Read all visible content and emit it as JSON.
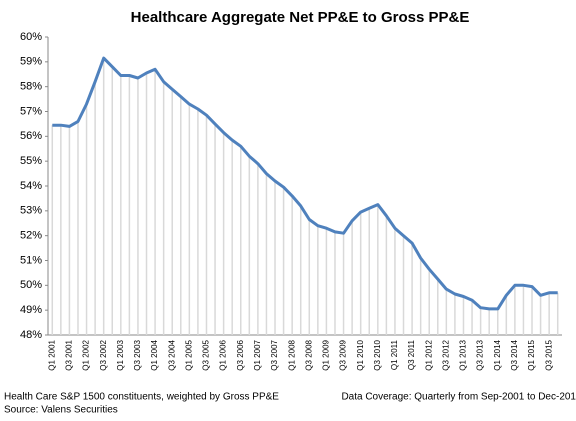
{
  "chart_data": {
    "type": "line",
    "title": "Healthcare  Aggregate  Net PP&E to Gross PP&E",
    "categories": [
      "Q1 2001",
      null,
      "Q3 2001",
      null,
      "Q1 2002",
      null,
      "Q3 2002",
      null,
      "Q1 2003",
      null,
      "Q3 2003",
      null,
      "Q1 2004",
      null,
      "Q3 2004",
      null,
      "Q1 2005",
      null,
      "Q3 2005",
      null,
      "Q1 2006",
      null,
      "Q3 2006",
      null,
      "Q1 2007",
      null,
      "Q3 2007",
      null,
      "Q1 2008",
      null,
      "Q3 2008",
      null,
      "Q1 2009",
      null,
      "Q3 2009",
      null,
      "Q1 2010",
      null,
      "Q3 2010",
      null,
      "Q1 2011",
      null,
      "Q3 2011",
      null,
      "Q1 2012",
      null,
      "Q3 2012",
      null,
      "Q1 2013",
      null,
      "Q3 2013",
      null,
      "Q1 2014",
      null,
      "Q3 2014",
      null,
      "Q1 2015",
      null,
      "Q3 2015",
      null
    ],
    "values": [
      56.45,
      56.45,
      56.4,
      56.6,
      57.3,
      58.2,
      59.15,
      58.8,
      58.45,
      58.45,
      58.35,
      58.55,
      58.7,
      58.2,
      57.9,
      57.6,
      57.3,
      57.1,
      56.85,
      56.5,
      56.15,
      55.85,
      55.6,
      55.2,
      54.9,
      54.5,
      54.2,
      53.95,
      53.6,
      53.2,
      52.65,
      52.4,
      52.3,
      52.15,
      52.1,
      52.6,
      52.95,
      53.1,
      53.25,
      52.8,
      52.3,
      52.0,
      51.7,
      51.1,
      50.65,
      50.25,
      49.85,
      49.65,
      49.55,
      49.4,
      49.1,
      49.05,
      49.05,
      49.6,
      50.0,
      50.0,
      49.95,
      49.6,
      49.7,
      49.7
    ],
    "color": "#4f81bd",
    "drop_line_color": "#d9d9d9",
    "ylim": [
      48,
      60
    ],
    "yticks": [
      {
        "value": 48,
        "label": "48%"
      },
      {
        "value": 49,
        "label": "49%"
      },
      {
        "value": 50,
        "label": "50%"
      },
      {
        "value": 51,
        "label": "51%"
      },
      {
        "value": 52,
        "label": "52%"
      },
      {
        "value": 53,
        "label": "53%"
      },
      {
        "value": 54,
        "label": "54%"
      },
      {
        "value": 55,
        "label": "55%"
      },
      {
        "value": 56,
        "label": "56%"
      },
      {
        "value": 57,
        "label": "57%"
      },
      {
        "value": 58,
        "label": "58%"
      },
      {
        "value": 59,
        "label": "59%"
      },
      {
        "value": 60,
        "label": "60%"
      }
    ],
    "note_left": [
      "Health Care S&P 1500 constituents, weighted by Gross PP&E",
      "Source: Valens Securities"
    ],
    "note_right": "Data Coverage: Quarterly from Sep-2001 to Dec-201"
  }
}
